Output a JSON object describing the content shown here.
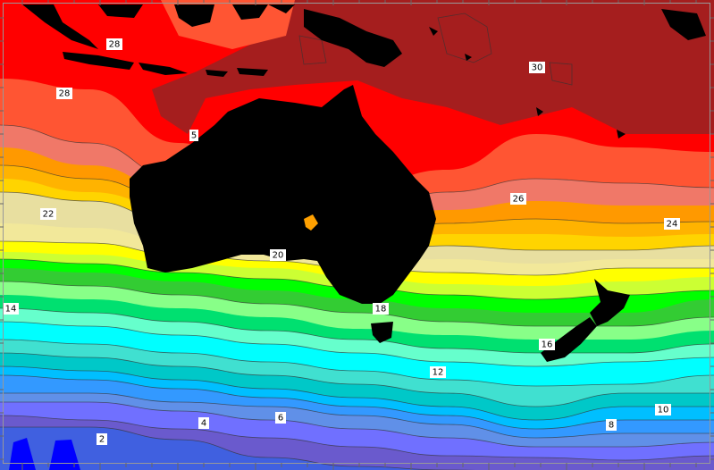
{
  "map": {
    "land_color": "#000000",
    "contour_color": "#444444",
    "band_colors": [
      "#a51e1e",
      "#ff0000",
      "#ff5533",
      "#f07868",
      "#ff9900",
      "#ffb300",
      "#ffd400",
      "#e8dfa0",
      "#f2e89a",
      "#ffff00",
      "#ccff33",
      "#00ff00",
      "#33cc33",
      "#88ff88",
      "#00e070",
      "#66ffcc",
      "#00ffff",
      "#40e0d0",
      "#00c8c8",
      "#00bfff",
      "#3399ff",
      "#6090e8",
      "#7070ff",
      "#6a5acd",
      "#4060e0",
      "#0000ff"
    ],
    "contour_labels": [
      "28",
      "28",
      "30",
      "26",
      "24",
      "22",
      "20",
      "14",
      "18",
      "16",
      "12",
      "10",
      "8",
      "6",
      "4",
      "2",
      "5"
    ]
  }
}
